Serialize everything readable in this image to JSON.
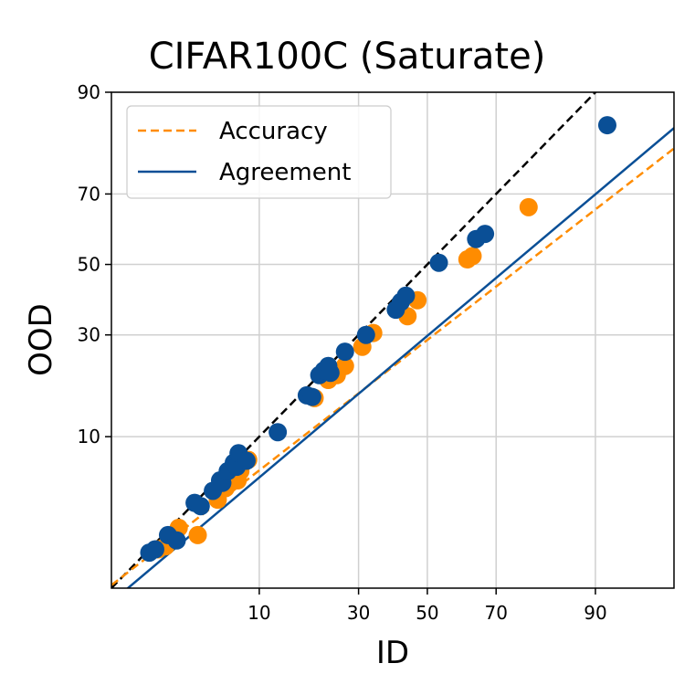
{
  "chart_data": {
    "type": "scatter",
    "title": "CIFAR100C (Saturate)",
    "xlabel": "ID",
    "ylabel": "OOD",
    "scale": "probit",
    "xlim": [
      0.8,
      97
    ],
    "ylim": [
      0.8,
      90
    ],
    "xticks": [
      10,
      30,
      50,
      70,
      90
    ],
    "yticks": [
      10,
      30,
      50,
      70,
      90
    ],
    "xtick_labels": [
      "10",
      "30",
      "50",
      "70",
      "90"
    ],
    "ytick_labels": [
      "10",
      "30",
      "50",
      "70",
      "90"
    ],
    "grid": true,
    "legend_position": "top-left",
    "colors": {
      "accuracy": "#ff8c00",
      "agreement": "#0a4f96",
      "diagonal": "#000000"
    },
    "legend": [
      {
        "label": "Accuracy",
        "style": "dashed",
        "color": "#ff8c00"
      },
      {
        "label": "Agreement",
        "style": "solid",
        "color": "#0a4f96"
      }
    ],
    "lines": {
      "diagonal": [
        [
          0.8,
          0.8
        ],
        [
          90.5,
          90.5
        ]
      ],
      "accuracy_fit": [
        [
          0.8,
          0.85
        ],
        [
          97,
          80.6
        ]
      ],
      "agreement_fit": [
        [
          0.8,
          0.6
        ],
        [
          97,
          84.5
        ]
      ]
    },
    "series": [
      {
        "name": "Accuracy",
        "color": "#ff8c00",
        "x": [
          2.0,
          2.3,
          2.9,
          4.0,
          5.5,
          6.2,
          7.4,
          7.7,
          8.6,
          19.5,
          22.5,
          24.5,
          26.5,
          31.0,
          34.0,
          44.0,
          47.0,
          62.0,
          63.5,
          78.0
        ],
        "y": [
          1.7,
          1.8,
          2.5,
          2.2,
          4.0,
          4.8,
          5.4,
          6.2,
          7.3,
          16.0,
          19.5,
          20.5,
          22.5,
          27.0,
          30.5,
          35.0,
          39.5,
          51.5,
          52.5,
          66.5
        ]
      },
      {
        "name": "Agreement",
        "color": "#0a4f96",
        "x": [
          1.7,
          1.9,
          2.4,
          2.8,
          3.8,
          4.2,
          5.1,
          5.7,
          5.9,
          6.4,
          7.0,
          7.3,
          7.5,
          8.4,
          12.7,
          17.9,
          19.0,
          20.5,
          21.5,
          22.5,
          23.0,
          26.5,
          32.0,
          40.5,
          42.0,
          43.5,
          53.5,
          64.5,
          67.0,
          91.5
        ],
        "y": [
          1.6,
          1.7,
          2.2,
          2.0,
          3.8,
          3.6,
          4.6,
          5.4,
          5.2,
          6.2,
          7.0,
          6.6,
          8.0,
          7.2,
          10.6,
          16.5,
          16.2,
          20.5,
          21.5,
          22.5,
          21.0,
          25.8,
          30.0,
          36.8,
          39.0,
          40.8,
          50.5,
          57.5,
          59.0,
          85.0
        ]
      }
    ]
  }
}
